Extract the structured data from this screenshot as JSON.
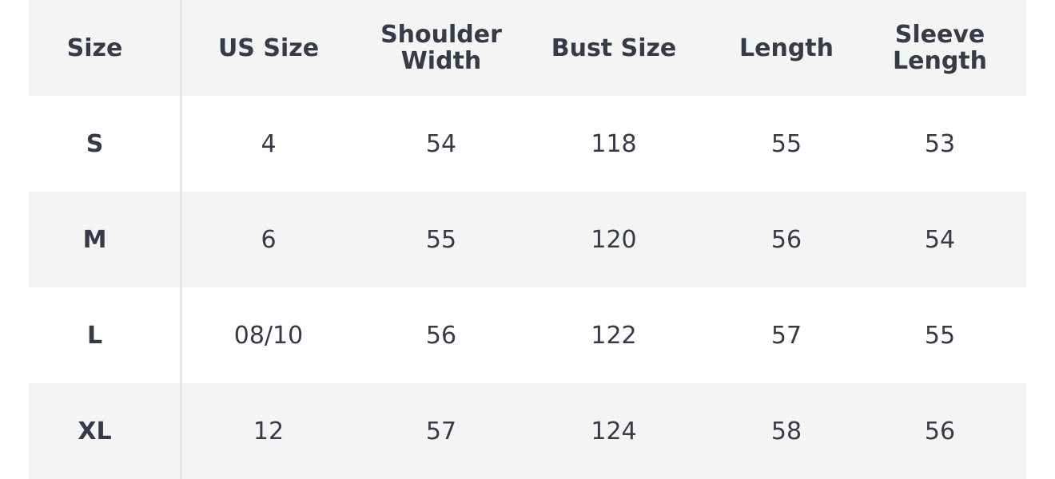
{
  "headers": [
    "Size",
    "US Size",
    "Shoulder Width",
    "Bust Size",
    "Length",
    "Sleeve Length"
  ],
  "rows": [
    [
      "S",
      "4",
      "54",
      "118",
      "55",
      "53"
    ],
    [
      "M",
      "6",
      "55",
      "120",
      "56",
      "54"
    ],
    [
      "L",
      "08/10",
      "56",
      "122",
      "57",
      "55"
    ],
    [
      "XL",
      "12",
      "57",
      "124",
      "58",
      "56"
    ]
  ],
  "colors": {
    "text": "#363a49",
    "row_shade": "#f4f4f4",
    "divider": "#e8e8e8"
  }
}
